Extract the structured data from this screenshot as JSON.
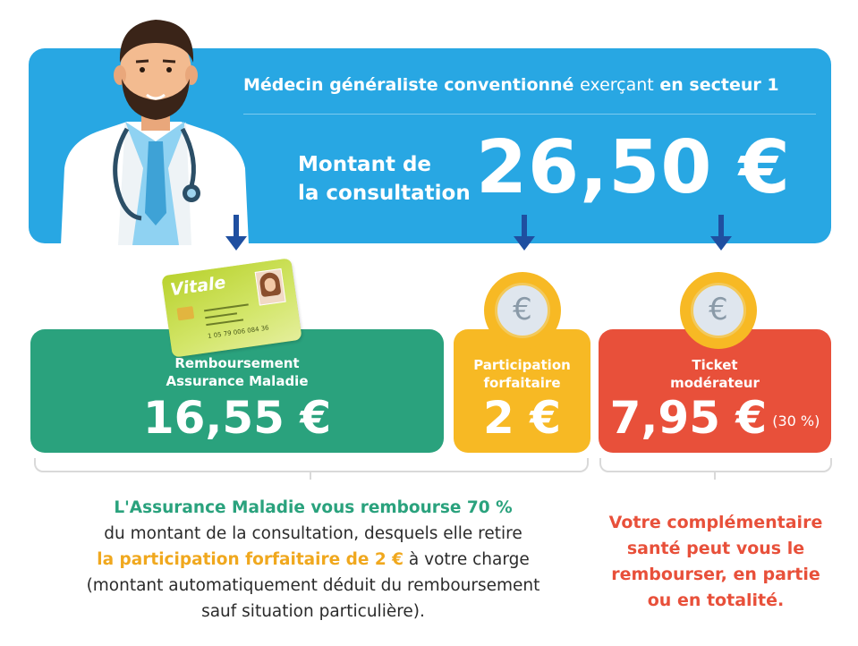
{
  "banner": {
    "title_part1": "Médecin généraliste conventionné",
    "title_part2": "exerçant",
    "title_part3": "en secteur 1",
    "montant_line1": "Montant de",
    "montant_line2": "la consultation",
    "amount": "26,50 €"
  },
  "vitale_card": {
    "logo": "Vitale",
    "number": "1 05 79 006 084 36"
  },
  "cards": {
    "green": {
      "label_line1": "Remboursement",
      "label_line2": "Assurance Maladie",
      "value": "16,55 €",
      "color": "#2aa27d"
    },
    "yellow": {
      "label_line1": "Participation",
      "label_line2": "forfaitaire",
      "value": "2 €",
      "color": "#f7b924"
    },
    "red": {
      "label_line1": "Ticket",
      "label_line2": "modérateur",
      "value": "7,95 €",
      "percent": "(30 %)",
      "color": "#e8503a"
    }
  },
  "coin_symbol": "€",
  "explain": {
    "line1": "L'Assurance Maladie vous rembourse 70 %",
    "line2": "du montant de la consultation, desquels elle retire",
    "line3_highlight": "la participation forfaitaire de 2 €",
    "line3_rest": " à votre charge",
    "line4": "(montant automatiquement déduit du remboursement",
    "line5": "sauf situation particulière)."
  },
  "complementaire": {
    "line1": "Votre complémentaire",
    "line2": "santé peut vous le",
    "line3": "rembourser, en partie",
    "line4": "ou en totalité."
  },
  "colors": {
    "banner": "#28a7e3",
    "arrow": "#1f4fa0"
  }
}
